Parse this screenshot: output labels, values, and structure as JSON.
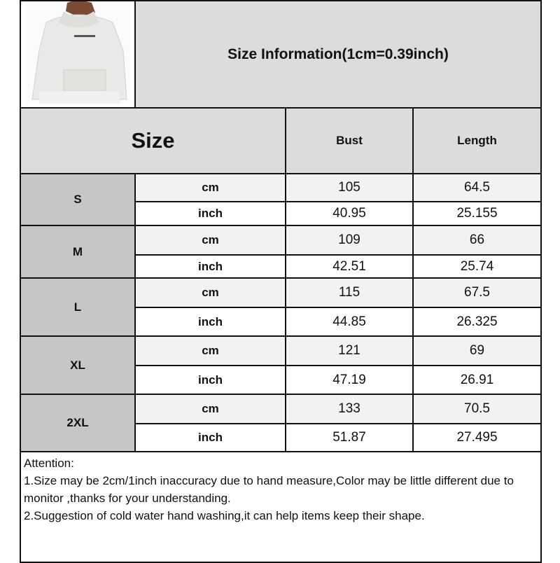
{
  "title": "Size Information(1cm=0.39inch)",
  "header": {
    "size": "Size",
    "bust": "Bust",
    "length": "Length"
  },
  "rows": [
    {
      "size": "S",
      "cm": {
        "unit": "cm",
        "bust": "105",
        "length": "64.5"
      },
      "inch": {
        "unit": "inch",
        "bust": "40.95",
        "length": "25.155"
      }
    },
    {
      "size": "M",
      "cm": {
        "unit": "cm",
        "bust": "109",
        "length": "66"
      },
      "inch": {
        "unit": "inch",
        "bust": "42.51",
        "length": "25.74"
      }
    },
    {
      "size": "L",
      "cm": {
        "unit": "cm",
        "bust": "115",
        "length": "67.5"
      },
      "inch": {
        "unit": "inch",
        "bust": "44.85",
        "length": "26.325"
      }
    },
    {
      "size": "XL",
      "cm": {
        "unit": "cm",
        "bust": "121",
        "length": "69"
      },
      "inch": {
        "unit": "inch",
        "bust": "47.19",
        "length": "26.91"
      }
    },
    {
      "size": "2XL",
      "cm": {
        "unit": "cm",
        "bust": "133",
        "length": "70.5"
      },
      "inch": {
        "unit": "inch",
        "bust": "51.87",
        "length": "27.495"
      }
    }
  ],
  "notes": [
    "Attention:",
    "1.Size may be 2cm/1inch inaccuracy due to hand measure,Color may be little different due to monitor ,thanks for your understanding.",
    "2.Suggestion of cold water hand washing,it can help items keep their shape."
  ],
  "product_image": "white-waffle-knit-hoodie-photo"
}
